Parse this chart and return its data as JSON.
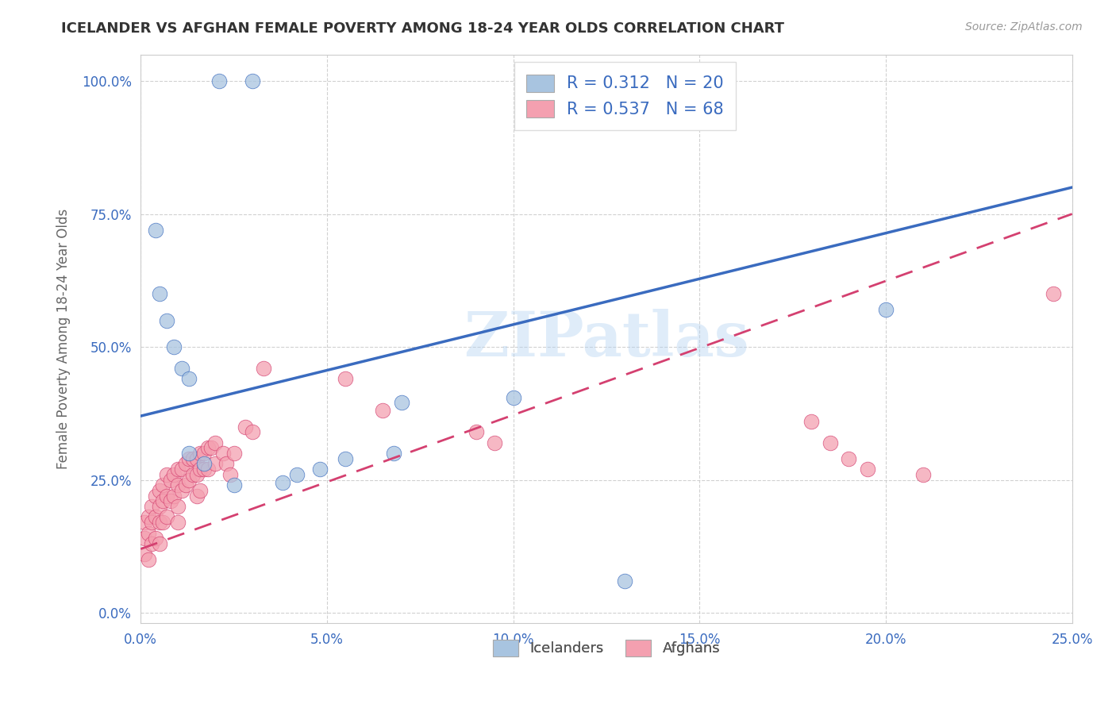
{
  "title": "ICELANDER VS AFGHAN FEMALE POVERTY AMONG 18-24 YEAR OLDS CORRELATION CHART",
  "source": "Source: ZipAtlas.com",
  "ylabel": "Female Poverty Among 18-24 Year Olds",
  "xlim": [
    0,
    0.25
  ],
  "ylim": [
    -0.02,
    1.05
  ],
  "xticks": [
    0.0,
    0.05,
    0.1,
    0.15,
    0.2,
    0.25
  ],
  "yticks": [
    0.0,
    0.25,
    0.5,
    0.75,
    1.0
  ],
  "icelander_R": 0.312,
  "icelander_N": 20,
  "afghan_R": 0.537,
  "afghan_N": 68,
  "icelander_color": "#a8c4e0",
  "afghan_color": "#f4a0b0",
  "icelander_line_color": "#3a6bbf",
  "afghan_line_color": "#d44070",
  "watermark": "ZIPatlas",
  "ice_line_x0": 0.0,
  "ice_line_y0": 0.37,
  "ice_line_x1": 0.25,
  "ice_line_y1": 0.8,
  "afg_line_x0": 0.0,
  "afg_line_y0": 0.12,
  "afg_line_x1": 0.25,
  "afg_line_y1": 0.75,
  "icelanders_x": [
    0.021,
    0.03,
    0.004,
    0.005,
    0.007,
    0.009,
    0.011,
    0.013,
    0.013,
    0.017,
    0.2,
    0.13,
    0.1,
    0.07,
    0.068,
    0.055,
    0.048,
    0.042,
    0.038,
    0.025
  ],
  "icelanders_y": [
    1.0,
    1.0,
    0.72,
    0.6,
    0.55,
    0.5,
    0.46,
    0.44,
    0.3,
    0.28,
    0.57,
    0.06,
    0.405,
    0.395,
    0.3,
    0.29,
    0.27,
    0.26,
    0.245,
    0.24
  ],
  "afghans_x": [
    0.001,
    0.001,
    0.001,
    0.002,
    0.002,
    0.002,
    0.003,
    0.003,
    0.003,
    0.004,
    0.004,
    0.004,
    0.005,
    0.005,
    0.005,
    0.005,
    0.006,
    0.006,
    0.006,
    0.007,
    0.007,
    0.007,
    0.008,
    0.008,
    0.009,
    0.009,
    0.01,
    0.01,
    0.01,
    0.01,
    0.011,
    0.011,
    0.012,
    0.012,
    0.013,
    0.013,
    0.014,
    0.014,
    0.015,
    0.015,
    0.015,
    0.016,
    0.016,
    0.016,
    0.017,
    0.017,
    0.018,
    0.018,
    0.019,
    0.02,
    0.02,
    0.022,
    0.023,
    0.024,
    0.025,
    0.028,
    0.03,
    0.033,
    0.055,
    0.065,
    0.09,
    0.095,
    0.18,
    0.185,
    0.19,
    0.195,
    0.21,
    0.245
  ],
  "afghans_y": [
    0.17,
    0.14,
    0.11,
    0.18,
    0.15,
    0.1,
    0.2,
    0.17,
    0.13,
    0.22,
    0.18,
    0.14,
    0.23,
    0.2,
    0.17,
    0.13,
    0.24,
    0.21,
    0.17,
    0.26,
    0.22,
    0.18,
    0.25,
    0.21,
    0.26,
    0.22,
    0.27,
    0.24,
    0.2,
    0.17,
    0.27,
    0.23,
    0.28,
    0.24,
    0.29,
    0.25,
    0.29,
    0.26,
    0.29,
    0.26,
    0.22,
    0.3,
    0.27,
    0.23,
    0.3,
    0.27,
    0.31,
    0.27,
    0.31,
    0.32,
    0.28,
    0.3,
    0.28,
    0.26,
    0.3,
    0.35,
    0.34,
    0.46,
    0.44,
    0.38,
    0.34,
    0.32,
    0.36,
    0.32,
    0.29,
    0.27,
    0.26,
    0.6
  ]
}
